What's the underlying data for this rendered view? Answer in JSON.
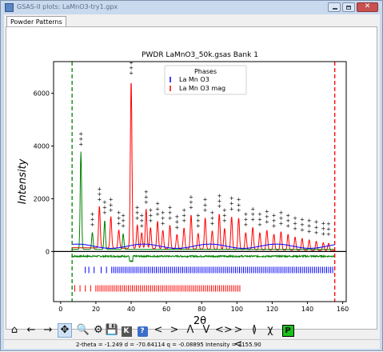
{
  "window": {
    "title": "GSAS-II plots: LaMnO3-try1.gpx",
    "close_glyph": "✕"
  },
  "tabs": [
    {
      "label": "Powder Patterns"
    }
  ],
  "chart_data": {
    "type": "line",
    "title": "PWDR LaMnO3_50k.gsas Bank 1",
    "xlabel": "2θ",
    "ylabel": "Intensity",
    "xlim": [
      -4,
      162
    ],
    "ylim": [
      -1900,
      7200
    ],
    "xticks": [
      0,
      20,
      40,
      60,
      80,
      100,
      120,
      140,
      160
    ],
    "yticks": [
      0,
      2000,
      4000,
      6000
    ],
    "grid": false,
    "legend": {
      "title": "Phases",
      "position": "top-center",
      "entries": [
        {
          "name": "La Mn O3",
          "color": "#0000ff"
        },
        {
          "name": "La Mn O3 mag",
          "color": "#ff0000"
        }
      ]
    },
    "limits": {
      "lower": 6.5,
      "upper": 155.5,
      "lower_color": "#008000",
      "upper_color": "#ff0000"
    },
    "colors": {
      "observed": "#000000",
      "calc_nuclear": "#0000ff",
      "calc_magnetic": "#ff0000",
      "difference": "#008000",
      "baseline": "#000000"
    },
    "baseline_level": 0,
    "difference_offset": -180,
    "peaks_green": [
      {
        "x": 11.5,
        "y": 3700
      },
      {
        "x": 25.0,
        "y": 1100
      },
      {
        "x": 18.0,
        "y": 650
      },
      {
        "x": 35.5,
        "y": 600
      }
    ],
    "peaks_red": [
      {
        "x": 22.0,
        "y": 1600
      },
      {
        "x": 28.5,
        "y": 1200
      },
      {
        "x": 33.0,
        "y": 700
      },
      {
        "x": 40.0,
        "y": 6400
      },
      {
        "x": 43.5,
        "y": 900
      },
      {
        "x": 46.0,
        "y": 600
      },
      {
        "x": 48.5,
        "y": 1500
      },
      {
        "x": 51.0,
        "y": 800
      },
      {
        "x": 55.0,
        "y": 1050
      },
      {
        "x": 58.0,
        "y": 700
      },
      {
        "x": 62.0,
        "y": 900
      },
      {
        "x": 66.0,
        "y": 550
      },
      {
        "x": 70.0,
        "y": 800
      },
      {
        "x": 74.0,
        "y": 1300
      },
      {
        "x": 78.0,
        "y": 600
      },
      {
        "x": 82.0,
        "y": 1200
      },
      {
        "x": 86.0,
        "y": 700
      },
      {
        "x": 90.0,
        "y": 1350
      },
      {
        "x": 93.0,
        "y": 800
      },
      {
        "x": 97.0,
        "y": 1250
      },
      {
        "x": 101.0,
        "y": 1200
      },
      {
        "x": 105.0,
        "y": 650
      },
      {
        "x": 109.0,
        "y": 850
      },
      {
        "x": 113.0,
        "y": 650
      },
      {
        "x": 117.0,
        "y": 750
      },
      {
        "x": 121.0,
        "y": 600
      },
      {
        "x": 125.0,
        "y": 700
      },
      {
        "x": 129.0,
        "y": 600
      },
      {
        "x": 133.0,
        "y": 500
      },
      {
        "x": 137.0,
        "y": 450
      },
      {
        "x": 141.0,
        "y": 400
      },
      {
        "x": 145.0,
        "y": 350
      },
      {
        "x": 149.0,
        "y": 300
      },
      {
        "x": 152.0,
        "y": 280
      }
    ],
    "tick_marks": {
      "nuclear": {
        "row_y": -700,
        "x_from": 14,
        "x_to": 154,
        "first": [
          14,
          16,
          19,
          23,
          26,
          29
        ]
      },
      "magnetic": {
        "row_y": -1400,
        "x_from": 8,
        "x_to": 101,
        "first": [
          8,
          11,
          14,
          17,
          20
        ]
      }
    }
  },
  "toolbar": {
    "buttons": [
      {
        "name": "home-icon",
        "glyph": "⌂"
      },
      {
        "name": "back-icon",
        "glyph": "←"
      },
      {
        "name": "forward-icon",
        "glyph": "→"
      },
      {
        "name": "pan-icon",
        "glyph": "✥",
        "active": true
      },
      {
        "name": "zoom-icon",
        "glyph": "🔍"
      },
      {
        "name": "configure-subplots-icon",
        "glyph": "⚙"
      },
      {
        "name": "save-icon",
        "glyph": "💾"
      },
      {
        "name": "key-icon",
        "glyph": "K"
      },
      {
        "name": "help-icon",
        "glyph": "?"
      },
      {
        "name": "shift-left-icon",
        "glyph": "<"
      },
      {
        "name": "shift-right-icon",
        "glyph": ">"
      },
      {
        "name": "shift-up-icon",
        "glyph": "Λ"
      },
      {
        "name": "shift-down-icon",
        "glyph": "V"
      },
      {
        "name": "expand-x-icon",
        "glyph": "<>"
      },
      {
        "name": "contract-x-icon",
        "glyph": "><"
      },
      {
        "name": "expand-y-icon",
        "glyph": "≬"
      },
      {
        "name": "contract-y-icon",
        "glyph": "χ"
      },
      {
        "name": "publish-icon",
        "glyph": "P"
      }
    ]
  },
  "status": {
    "text": "2-theta =    -1.249 d = -70.64114 q =   -0.08895 Intensity =  3155.90"
  }
}
